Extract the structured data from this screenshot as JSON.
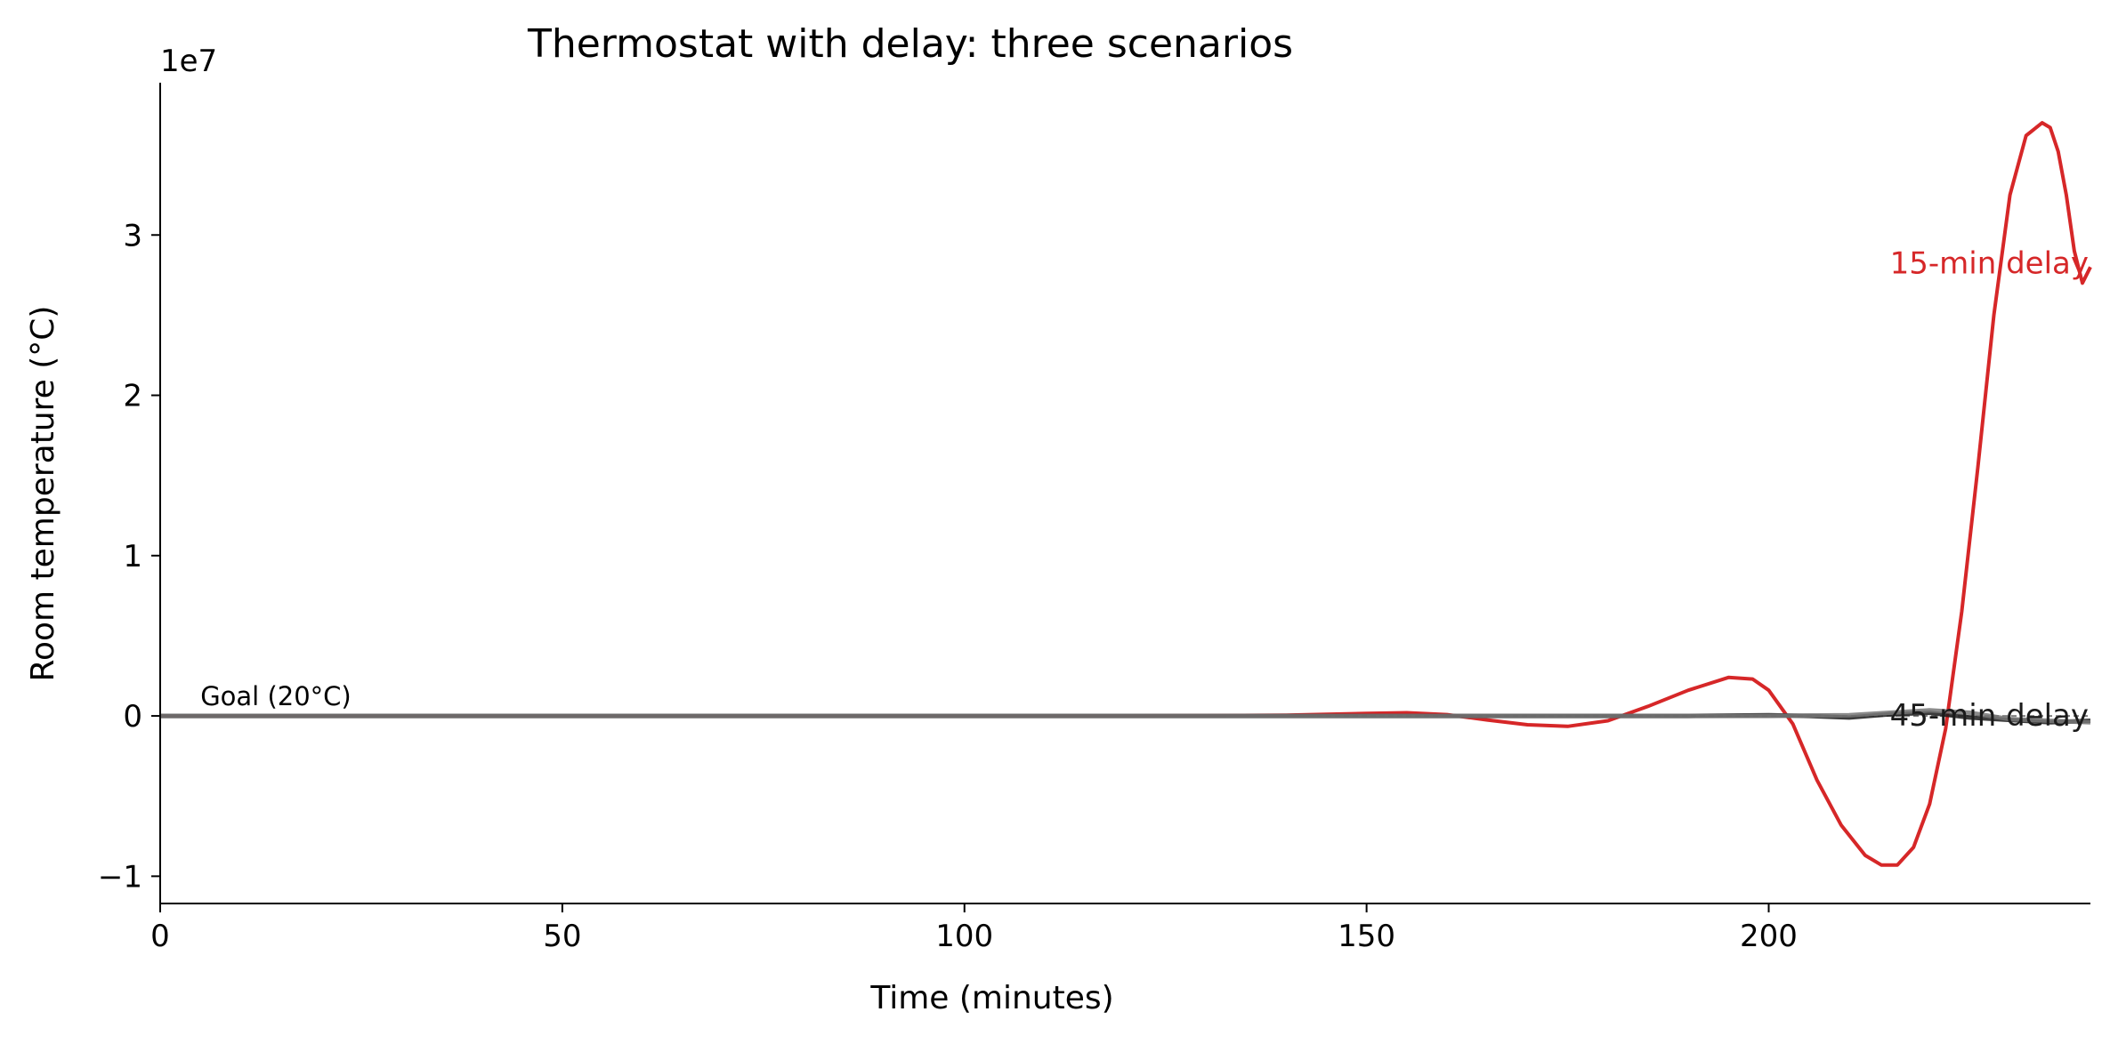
{
  "chart_data": {
    "type": "line",
    "title": "Thermostat with delay: three scenarios",
    "xlabel": "Time (minutes)",
    "ylabel": "Room temperature (°C)",
    "offset_label": "1e7",
    "y_scale_factor": 10000000,
    "xlim": [
      0,
      240
    ],
    "ylim": [
      -1.17,
      3.95
    ],
    "x_ticks": [
      0,
      50,
      100,
      150,
      200
    ],
    "x_tick_labels": [
      "0",
      "50",
      "100",
      "150",
      "200"
    ],
    "y_ticks": [
      -1,
      0,
      1,
      2,
      3
    ],
    "y_tick_labels": [
      "−1",
      "0",
      "1",
      "2",
      "3"
    ],
    "grid": false,
    "legend": "none",
    "goal": {
      "value": 20,
      "label": "Goal (20°C)",
      "color": "#808080"
    },
    "series": [
      {
        "name": "15-min delay",
        "color": "#d62728",
        "x": [
          0,
          100,
          120,
          130,
          140,
          145,
          150,
          155,
          160,
          165,
          170,
          175,
          180,
          185,
          190,
          195,
          198,
          200,
          203,
          206,
          209,
          212,
          214,
          216,
          218,
          220,
          222,
          224,
          226,
          228,
          230,
          232,
          234,
          235,
          236,
          237,
          238,
          239,
          240
        ],
        "y": [
          2e-06,
          2e-06,
          0.0005,
          0.002,
          0.005,
          0.01,
          0.016,
          0.02,
          0.008,
          -0.025,
          -0.055,
          -0.065,
          -0.03,
          0.06,
          0.16,
          0.24,
          0.23,
          0.16,
          -0.05,
          -0.4,
          -0.68,
          -0.87,
          -0.93,
          -0.93,
          -0.82,
          -0.55,
          -0.08,
          0.65,
          1.55,
          2.5,
          3.25,
          3.62,
          3.7,
          3.67,
          3.52,
          3.25,
          2.9,
          2.7,
          2.8
        ]
      },
      {
        "name": "45-min delay",
        "color": "#1a1a1a",
        "x": [
          0,
          150,
          190,
          200,
          205,
          210,
          215,
          220,
          225,
          230,
          235,
          240
        ],
        "y": [
          2e-06,
          2e-06,
          0.0,
          0.005,
          0.0,
          -0.01,
          0.01,
          0.02,
          -0.01,
          -0.025,
          -0.04,
          -0.03
        ]
      },
      {
        "name": "",
        "color": "#777777",
        "x": [
          0,
          150,
          200,
          210,
          215,
          220,
          225,
          230,
          235,
          240
        ],
        "y": [
          2e-06,
          2e-06,
          0.0,
          0.005,
          0.02,
          0.035,
          0.02,
          -0.02,
          -0.03,
          -0.04
        ]
      }
    ],
    "annotations": [
      {
        "text": "15-min delay",
        "color": "#d62728",
        "x": 240,
        "y": 2.82,
        "align": "right"
      },
      {
        "text": "45-min delay",
        "color": "#1a1a1a",
        "x": 240,
        "y": 0.0,
        "align": "right"
      }
    ]
  }
}
